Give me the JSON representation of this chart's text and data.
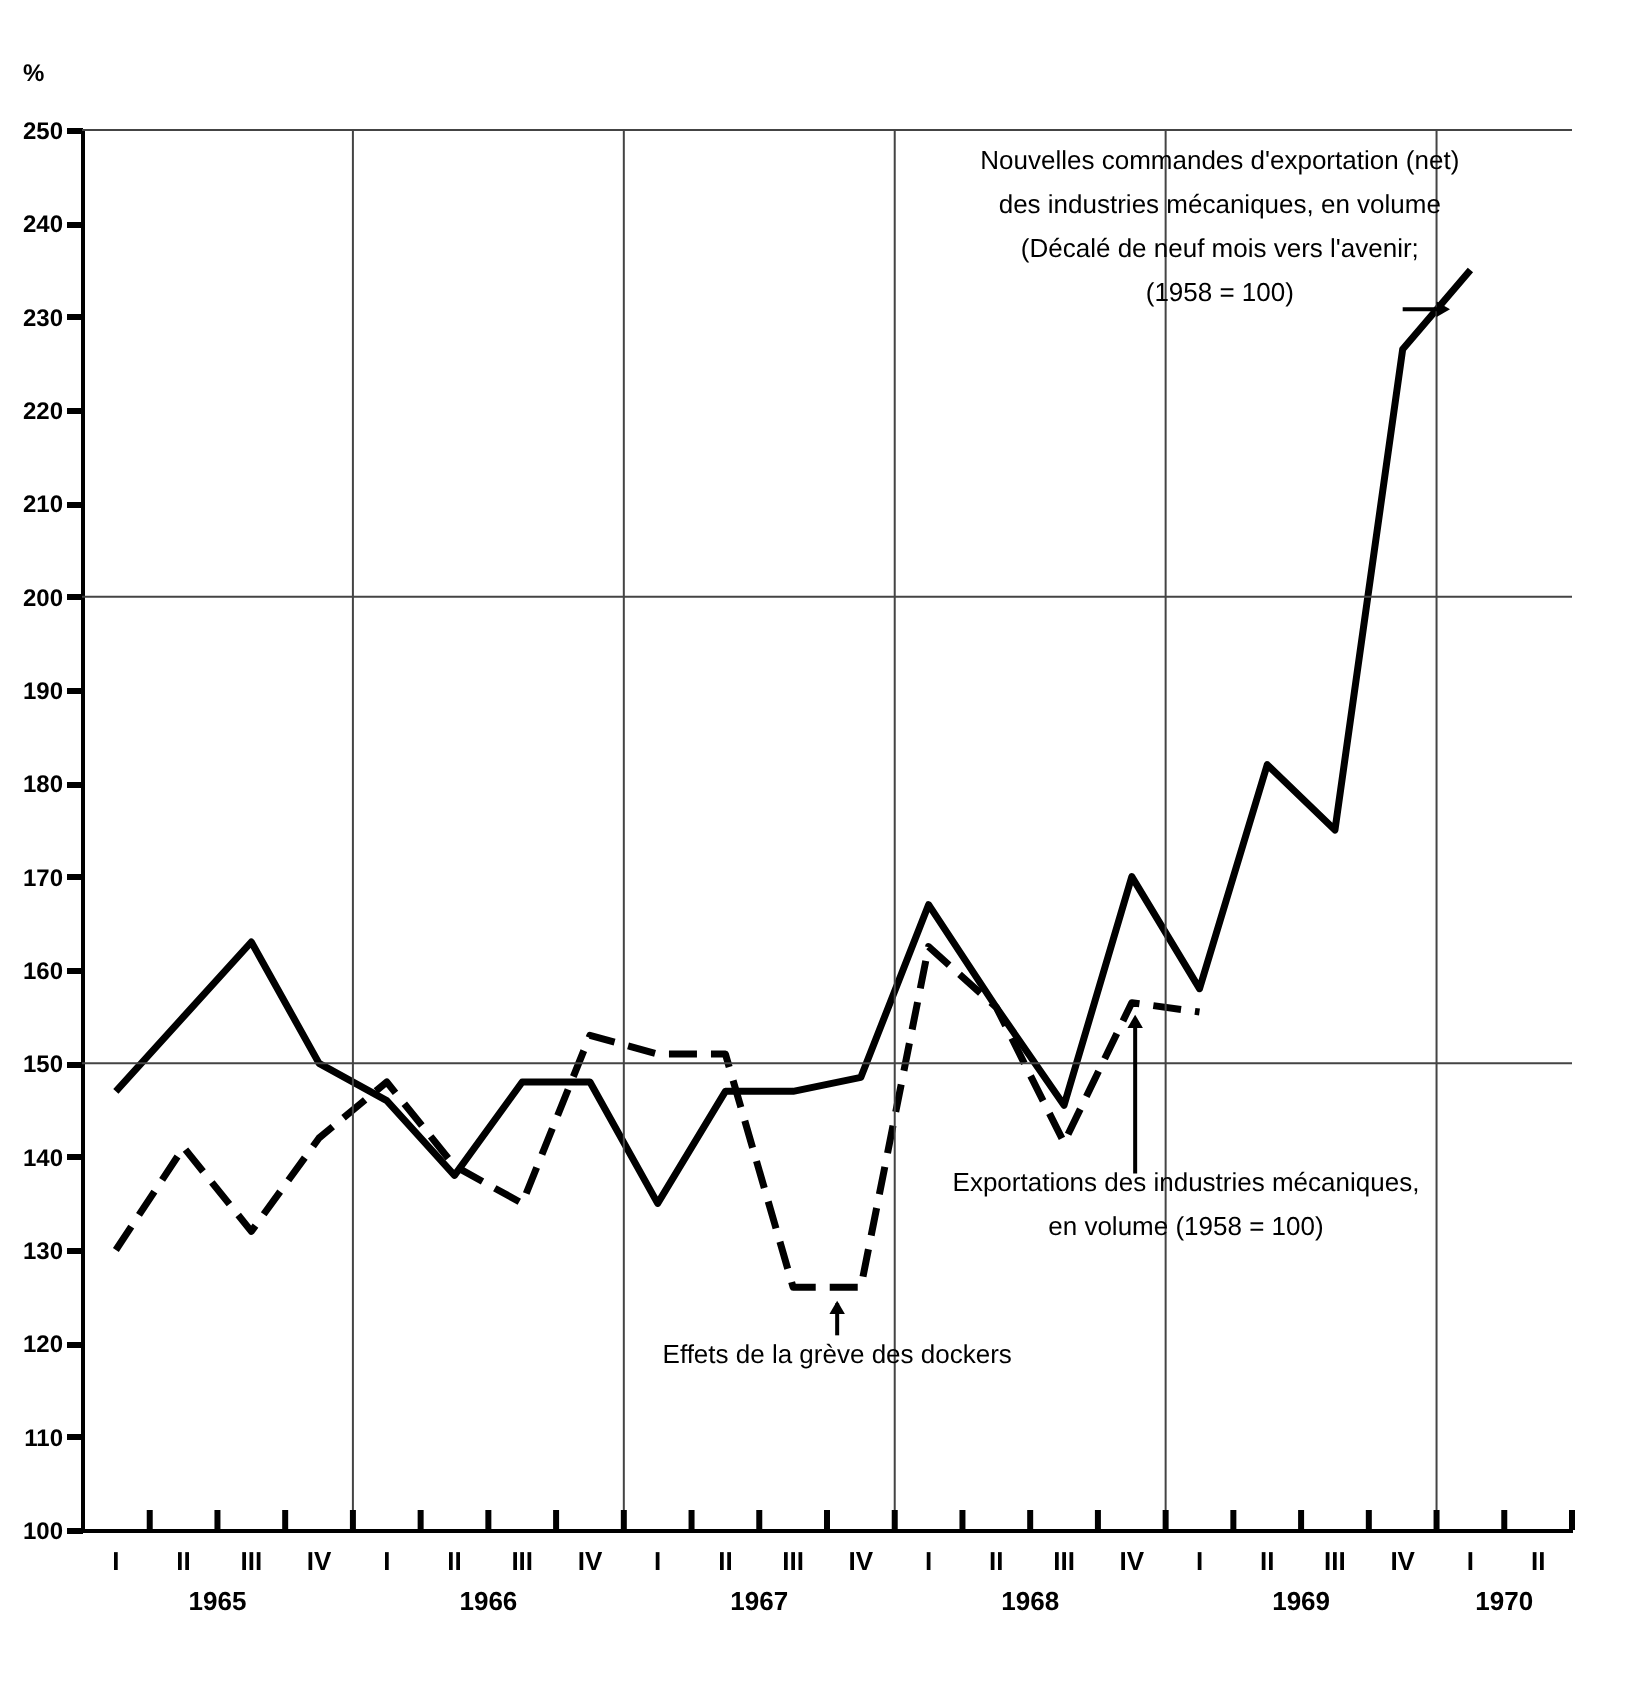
{
  "chart_data": {
    "type": "line",
    "ylabel": "%",
    "categories": [
      "I",
      "II",
      "III",
      "IV",
      "I",
      "II",
      "III",
      "IV",
      "I",
      "II",
      "III",
      "IV",
      "I",
      "II",
      "III",
      "IV",
      "I",
      "II",
      "III",
      "IV",
      "I",
      "II"
    ],
    "series": [
      {
        "name": "Nouvelles commandes d'exportation (net) des industries mécaniques, en volume (Décalé de neuf mois vers l'avenir; (1958 = 100)",
        "color": "#000000",
        "line_style": "solid",
        "values": [
          147,
          155,
          163,
          150,
          146,
          138,
          148,
          148,
          135,
          147,
          147,
          148.5,
          167,
          156,
          145.5,
          170,
          158,
          182,
          175,
          226.5,
          235,
          null
        ]
      },
      {
        "name": "Exportations des industries mécaniques, en volume (1958 = 100)",
        "color": "#000000",
        "line_style": "dashed",
        "values": [
          130,
          141,
          132,
          142,
          148,
          139,
          135,
          153,
          151,
          151,
          126,
          126,
          162.5,
          156,
          141.5,
          156.5,
          155.5,
          null,
          null,
          null,
          null,
          null
        ]
      }
    ],
    "ylim": [
      100,
      250
    ],
    "yticks": [
      100,
      110,
      120,
      130,
      140,
      150,
      160,
      170,
      180,
      190,
      200,
      210,
      220,
      230,
      240,
      250
    ],
    "grid": true,
    "annotations": [
      "1965",
      "1966",
      "1967",
      "1968",
      "1969",
      "1970",
      {
        "text": "Effets de la grève des dockers",
        "y": 126
      }
    ]
  }
}
